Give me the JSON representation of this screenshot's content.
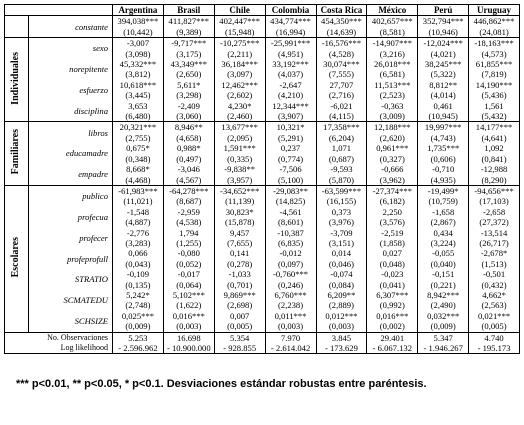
{
  "table": {
    "columns": [
      "Argentina",
      "Brasil",
      "Chile",
      "Colombia",
      "Costa Rica",
      "México",
      "Perú",
      "Uruguay"
    ],
    "constant": {
      "name": "constante",
      "coef": [
        "394,038***",
        "411,827***",
        "402,447***",
        "434,774***",
        "454,350***",
        "402,657***",
        "352,794***",
        "446,862***"
      ],
      "se": [
        "(10,442)",
        "(9,389)",
        "(15,948)",
        "(16,994)",
        "(14,639)",
        "(8,581)",
        "(10,946)",
        "(24,081)"
      ]
    },
    "groups": [
      {
        "label": "Individuales",
        "rows": [
          {
            "name": "sexo",
            "coef": [
              "-3,007",
              "-9,717***",
              "-10,275***",
              "-25,991***",
              "-16,576***",
              "-14,907***",
              "-12,024***",
              "-18,163***"
            ],
            "se": [
              "(3,098)",
              "(3,175)",
              "(2,211)",
              "(4,951)",
              "(4,528)",
              "(3,216)",
              "(4,021)",
              "(4,573)"
            ]
          },
          {
            "name": "norepitente",
            "coef": [
              "45,332***",
              "43,349***",
              "36,184***",
              "33,192***",
              "30,074***",
              "26,018***",
              "38,245***",
              "61,855***"
            ],
            "se": [
              "(3,812)",
              "(2,650)",
              "(3,097)",
              "(4,037)",
              "(7,555)",
              "(6,581)",
              "(5,322)",
              "(7,819)"
            ]
          },
          {
            "name": "esfuerzo",
            "coef": [
              "10,618***",
              "5,611*",
              "12,462***",
              "-2,647",
              "27,707",
              "11,513***",
              "8,812**",
              "14,190***"
            ],
            "se": [
              "(3,445)",
              "(3,298)",
              "(2,602)",
              "(4,210)",
              "(2,716)",
              "(2,523)",
              "(4,014)",
              "(5,436)"
            ]
          },
          {
            "name": "disciplina",
            "coef": [
              "3,653",
              "-2,409",
              "4,230*",
              "12,344***",
              "-6,021",
              "-0,363",
              "0,461",
              "1,561"
            ],
            "se": [
              "(6,480)",
              "(3,060)",
              "(2,460)",
              "(3,907)",
              "(4,115)",
              "(3,009)",
              "(10,945)",
              "(5,432)"
            ]
          }
        ]
      },
      {
        "label": "Familiares",
        "rows": [
          {
            "name": "libros",
            "coef": [
              "20,321***",
              "8,946**",
              "13,677***",
              "10,321*",
              "17,358***",
              "12,188***",
              "19,997***",
              "14,177***"
            ],
            "se": [
              "(2,755)",
              "(4,658)",
              "(2,095)",
              "(5,291)",
              "(6,204)",
              "(2,620)",
              "(4,743)",
              "(4,641)"
            ]
          },
          {
            "name": "educamadre",
            "coef": [
              "0,675*",
              "0,988*",
              "1,591***",
              "0,237",
              "1,071",
              "0,961***",
              "1,735***",
              "1,092"
            ],
            "se": [
              "(0,348)",
              "(0,497)",
              "(0,335)",
              "(0,774)",
              "(0,687)",
              "(0,327)",
              "(0,606)",
              "(0,841)"
            ]
          },
          {
            "name": "empadre",
            "coef": [
              "8,668*",
              "-3,046",
              "-9,838**",
              "-7,506",
              "-9,593",
              "-0,666",
              "-0,710",
              "-12,988"
            ],
            "se": [
              "(4,468)",
              "(4,567)",
              "(3,957)",
              "(5,100)",
              "(5,870)",
              "(3,962)",
              "(4,935)",
              "(8,290)"
            ]
          }
        ]
      },
      {
        "label": "Escolares",
        "rows": [
          {
            "name": "publico",
            "coef": [
              "-61,983***",
              "-64,278***",
              "-34,652***",
              "-29,083**",
              "-63,599***",
              "-27,374***",
              "-19,499*",
              "-94,656***"
            ],
            "se": [
              "(11,021)",
              "(8,687)",
              "(11,139)",
              "(14,825)",
              "(16,155)",
              "(6,182)",
              "(10,759)",
              "(17,103)"
            ]
          },
          {
            "name": "profecua",
            "coef": [
              "-1,548",
              "-2,959",
              "30,823*",
              "-4,561",
              "0,373",
              "2,250",
              "-1,658",
              "-2,658"
            ],
            "se": [
              "(4,887)",
              "(4,538)",
              "(15,878)",
              "(8,601)",
              "(3,976)",
              "(3,576)",
              "(2,867)",
              "(27,372)"
            ]
          },
          {
            "name": "profecer",
            "coef": [
              "-2,776",
              "1,794",
              "9,457",
              "-10,387",
              "-3,709",
              "-2,519",
              "0,434",
              "-13,514"
            ],
            "se": [
              "(3,283)",
              "(1,255)",
              "(7,655)",
              "(6,835)",
              "(3,151)",
              "(1,858)",
              "(3,224)",
              "(26,717)"
            ]
          },
          {
            "name": "profeprofull",
            "coef": [
              "0,066",
              "-0,080",
              "0,141",
              "-0,012",
              "0,014",
              "0,027",
              "-0,055",
              "-2,678*"
            ],
            "se": [
              "(0,043)",
              "(0,052)",
              "(0,278)",
              "(0,097)",
              "(0,046)",
              "(0,048)",
              "(0,040)",
              "(1,513)"
            ]
          },
          {
            "name": "STRATIO",
            "coef": [
              "-0,109",
              "-0,017",
              "-1,033",
              "-0,760***",
              "-0,074",
              "-0,023",
              "-0,151",
              "-0,501"
            ],
            "se": [
              "(0,135)",
              "(0,064)",
              "(0,701)",
              "(0,246)",
              "(0,084)",
              "(0,041)",
              "(0,221)",
              "(0,432)"
            ]
          },
          {
            "name": "SCMATEDU",
            "coef": [
              "5,242*",
              "5,102***",
              "9,869***",
              "6,760***",
              "6,209**",
              "6,307***",
              "8,942***",
              "4,662*"
            ],
            "se": [
              "(2,748)",
              "(1,622)",
              "(2,698)",
              "(2,238)",
              "(2,889)",
              "(0,992)",
              "(2,490)",
              "(2,563)"
            ]
          },
          {
            "name": "SCHSIZE",
            "coef": [
              "0,025***",
              "0,016***",
              "0,007",
              "0,011***",
              "0,012***",
              "0,016***",
              "0,032***",
              "0,021***"
            ],
            "se": [
              "(0,009)",
              "(0,003)",
              "(0,005)",
              "(0,003)",
              "(0,003)",
              "(0,002)",
              "(0,009)",
              "(0,005)"
            ]
          }
        ]
      }
    ],
    "stats": [
      {
        "name": "No. Observaciones",
        "values": [
          "5.253",
          "16.698",
          "5.354",
          "7.970",
          "3.845",
          "29.401",
          "5.347",
          "4.740"
        ]
      },
      {
        "name": "Log likelihood",
        "values": [
          "- 2.596.962",
          "- 10.900.000",
          "- 928.855",
          "- 2.614.042",
          "- 173.629",
          "- 6.067.132",
          "- 1.946.267",
          "- 195.173"
        ]
      }
    ]
  },
  "footer": "*** p<0.01, ** p<0.05, * p<0.1. Desviaciones estándar robustas entre paréntesis."
}
